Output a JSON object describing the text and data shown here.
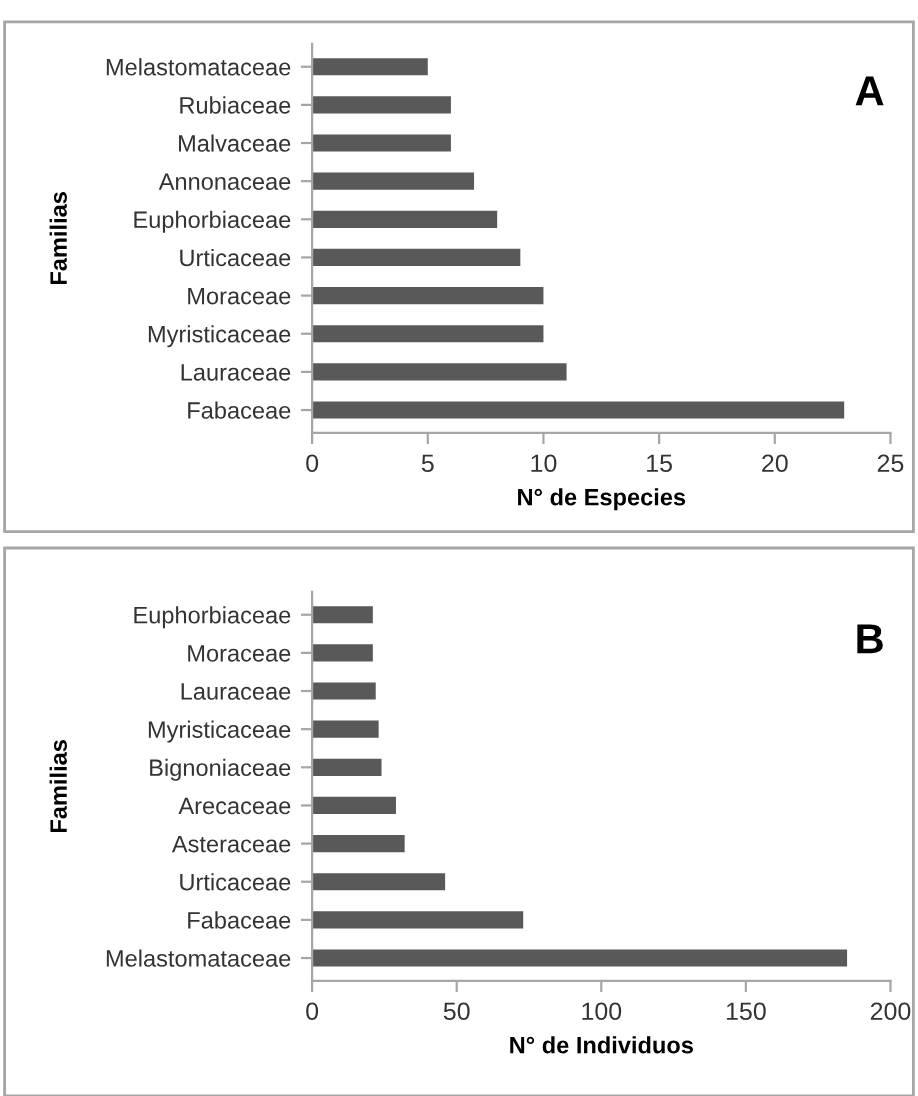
{
  "chart_data": [
    {
      "type": "bar",
      "orientation": "horizontal",
      "title": "A",
      "xlabel": "N° de Especies",
      "ylabel": "Familias",
      "categories": [
        "Melastomataceae",
        "Rubiaceae",
        "Malvaceae",
        "Annonaceae",
        "Euphorbiaceae",
        "Urticaceae",
        "Moraceae",
        "Myristicaceae",
        "Lauraceae",
        "Fabaceae"
      ],
      "values": [
        5,
        6,
        6,
        7,
        8,
        9,
        10,
        10,
        11,
        23
      ],
      "color": "#595959",
      "xlim": [
        0,
        25
      ],
      "xticks": [
        0,
        5,
        10,
        15,
        20,
        25
      ],
      "grid": false,
      "legend": false
    },
    {
      "type": "bar",
      "orientation": "horizontal",
      "title": "B",
      "xlabel": "N° de Individuos",
      "ylabel": "Familias",
      "categories": [
        "Euphorbiaceae",
        "Moraceae",
        "Lauraceae",
        "Myristicaceae",
        "Bignoniaceae",
        "Arecaceae",
        "Asteraceae",
        "Urticaceae",
        "Fabaceae",
        "Melastomataceae"
      ],
      "values": [
        21,
        21,
        22,
        23,
        24,
        29,
        32,
        46,
        73,
        185
      ],
      "color": "#595959",
      "xlim": [
        0,
        200
      ],
      "xticks": [
        0,
        50,
        100,
        150,
        200
      ],
      "grid": false,
      "legend": false
    }
  ]
}
